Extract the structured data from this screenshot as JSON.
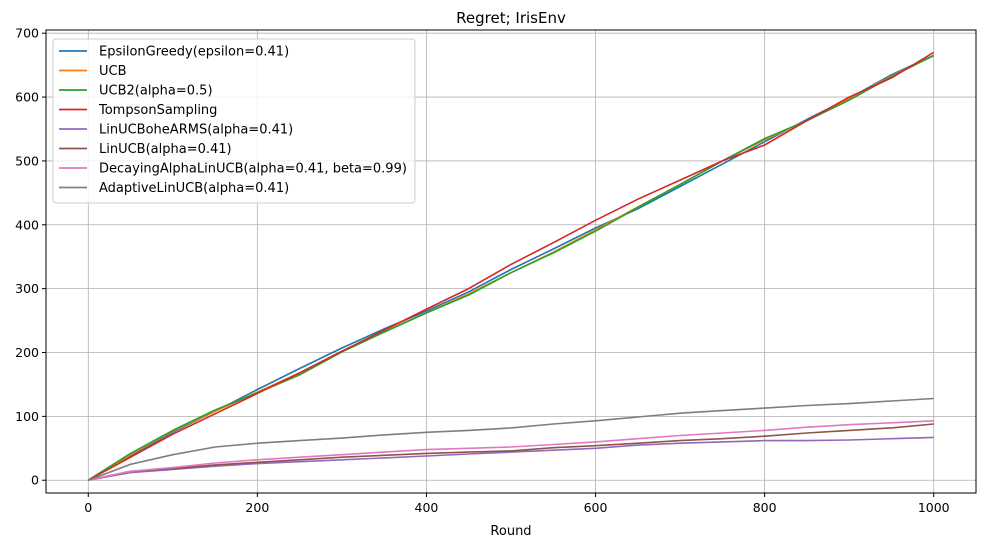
{
  "chart_data": {
    "type": "line",
    "title": "Regret; IrisEnv",
    "xlabel": "Round",
    "ylabel": "",
    "xlim": [
      -50,
      1050
    ],
    "ylim": [
      -20,
      705
    ],
    "xticks": [
      0,
      200,
      400,
      600,
      800,
      1000
    ],
    "yticks": [
      0,
      100,
      200,
      300,
      400,
      500,
      600,
      700
    ],
    "grid": true,
    "legend_position": "top-left",
    "series": [
      {
        "name": "EpsilonGreedy(epsilon=0.41)",
        "color": "#1f77b4",
        "x": [
          0,
          50,
          100,
          150,
          200,
          250,
          300,
          350,
          400,
          450,
          500,
          550,
          600,
          650,
          700,
          750,
          800,
          850,
          900,
          950,
          1000
        ],
        "y": [
          0,
          38,
          75,
          108,
          142,
          175,
          207,
          237,
          265,
          295,
          330,
          362,
          395,
          425,
          460,
          495,
          530,
          565,
          598,
          635,
          665
        ]
      },
      {
        "name": "UCB",
        "color": "#ff7f0e",
        "x": [
          0,
          50,
          100,
          150,
          200,
          250,
          300,
          350,
          400,
          450,
          500,
          550,
          600,
          650,
          700,
          750,
          800,
          850,
          900,
          950,
          1000
        ],
        "y": [
          0,
          40,
          77,
          108,
          138,
          168,
          202,
          233,
          262,
          292,
          325,
          357,
          392,
          428,
          463,
          500,
          533,
          563,
          597,
          633,
          665
        ]
      },
      {
        "name": "UCB2(alpha=0.5)",
        "color": "#2ca02c",
        "x": [
          0,
          50,
          100,
          150,
          200,
          250,
          300,
          350,
          400,
          450,
          500,
          550,
          600,
          650,
          700,
          750,
          800,
          850,
          900,
          950,
          1000
        ],
        "y": [
          0,
          42,
          78,
          110,
          137,
          165,
          201,
          232,
          262,
          290,
          325,
          356,
          390,
          427,
          463,
          500,
          535,
          563,
          595,
          632,
          665
        ]
      },
      {
        "name": "TompsonSampling",
        "color": "#d62728",
        "x": [
          0,
          50,
          100,
          150,
          200,
          250,
          300,
          350,
          400,
          450,
          500,
          550,
          600,
          650,
          700,
          750,
          800,
          850,
          900,
          950,
          1000
        ],
        "y": [
          0,
          36,
          72,
          104,
          136,
          168,
          202,
          235,
          268,
          300,
          338,
          372,
          407,
          440,
          470,
          500,
          525,
          563,
          600,
          630,
          670
        ]
      },
      {
        "name": "LinUCBoheARMS(alpha=0.41)",
        "color": "#9467bd",
        "x": [
          0,
          50,
          100,
          150,
          200,
          250,
          300,
          350,
          400,
          450,
          500,
          550,
          600,
          650,
          700,
          750,
          800,
          850,
          900,
          950,
          1000
        ],
        "y": [
          0,
          12,
          17,
          22,
          26,
          29,
          32,
          35,
          38,
          41,
          44,
          47,
          50,
          55,
          58,
          60,
          62,
          62,
          63,
          65,
          67
        ]
      },
      {
        "name": "LinUCB(alpha=0.41)",
        "color": "#8c564b",
        "x": [
          0,
          50,
          100,
          150,
          200,
          250,
          300,
          350,
          400,
          450,
          500,
          550,
          600,
          650,
          700,
          750,
          800,
          850,
          900,
          950,
          1000
        ],
        "y": [
          0,
          14,
          18,
          24,
          28,
          32,
          36,
          39,
          42,
          44,
          46,
          51,
          54,
          58,
          62,
          65,
          69,
          74,
          78,
          82,
          88
        ]
      },
      {
        "name": "DecayingAlphaLinUCB(alpha=0.41, beta=0.99)",
        "color": "#e377c2",
        "x": [
          0,
          50,
          100,
          150,
          200,
          250,
          300,
          350,
          400,
          450,
          500,
          550,
          600,
          650,
          700,
          750,
          800,
          850,
          900,
          950,
          1000
        ],
        "y": [
          0,
          14,
          20,
          27,
          32,
          36,
          40,
          44,
          48,
          50,
          52,
          56,
          60,
          65,
          70,
          74,
          78,
          83,
          87,
          90,
          93
        ]
      },
      {
        "name": "AdaptiveLinUCB(alpha=0.41)",
        "color": "#7f7f7f",
        "x": [
          0,
          50,
          100,
          150,
          200,
          250,
          300,
          350,
          400,
          450,
          500,
          550,
          600,
          650,
          700,
          750,
          800,
          850,
          900,
          950,
          1000
        ],
        "y": [
          0,
          25,
          40,
          52,
          58,
          62,
          66,
          71,
          75,
          78,
          82,
          88,
          93,
          99,
          105,
          109,
          113,
          117,
          120,
          124,
          128
        ]
      }
    ]
  }
}
